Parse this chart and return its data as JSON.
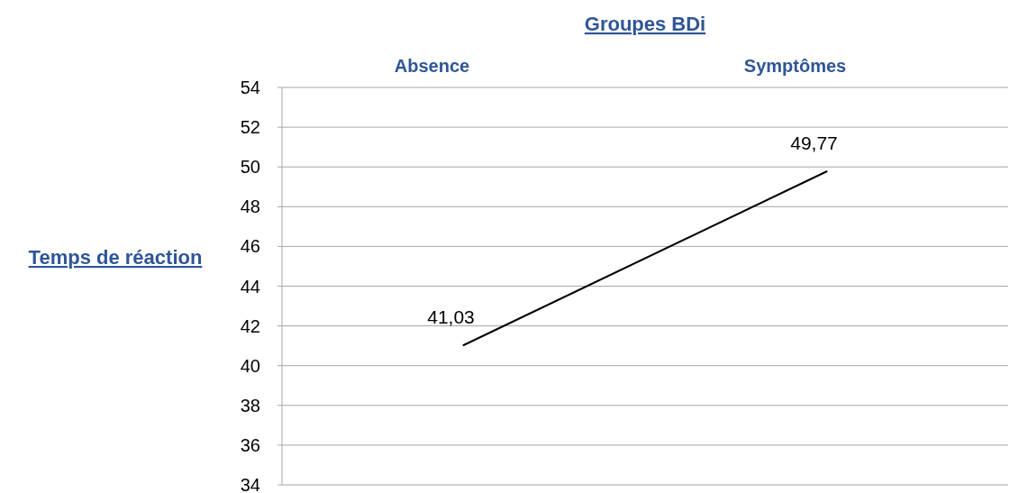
{
  "chart_data": {
    "type": "line",
    "xlabel": "Groupes BDi",
    "ylabel": "Temps de réaction",
    "categories": [
      "Absence",
      "Symptômes"
    ],
    "series": [
      {
        "color": "#000000",
        "values": [
          41.03,
          49.77
        ],
        "value_labels": [
          "41,03",
          "49,77"
        ]
      }
    ],
    "ylim": [
      34,
      54
    ],
    "yticks": [
      34,
      36,
      38,
      40,
      42,
      44,
      46,
      48,
      50,
      52,
      54
    ],
    "grid": "y",
    "marker": "none",
    "line_style": "solid"
  }
}
